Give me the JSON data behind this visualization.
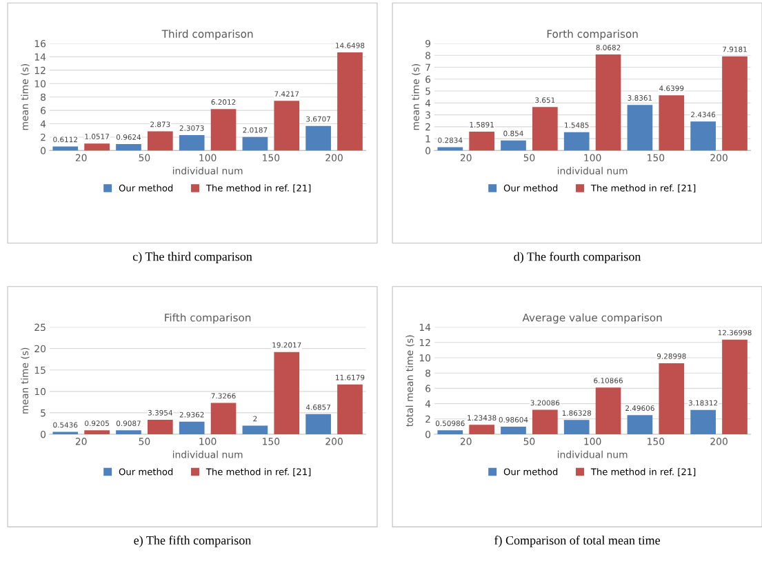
{
  "chart_data": [
    {
      "type": "bar",
      "title": "Third comparison",
      "xlabel": "individual num",
      "ylabel": "mean time (s)",
      "categories": [
        "20",
        "50",
        "100",
        "150",
        "200"
      ],
      "series": [
        {
          "name": "Our method",
          "color": "#4f81bd",
          "values": [
            0.6112,
            0.9624,
            2.3073,
            2.0187,
            3.6707
          ]
        },
        {
          "name": "The method in ref. [21]",
          "color": "#c0504d",
          "values": [
            1.0517,
            2.873,
            6.2012,
            7.4217,
            14.6498
          ]
        }
      ],
      "ylim": [
        0,
        16
      ],
      "yticks": [
        0,
        2,
        4,
        6,
        8,
        10,
        12,
        14,
        16
      ],
      "grid": "y",
      "legend": "bottom",
      "data_labels": true,
      "annotations": [
        "c) The third comparison"
      ]
    },
    {
      "type": "bar",
      "title": "Forth comparison",
      "xlabel": "individual num",
      "ylabel": "mean time (s)",
      "categories": [
        "20",
        "50",
        "100",
        "150",
        "200"
      ],
      "series": [
        {
          "name": "Our method",
          "color": "#4f81bd",
          "values": [
            0.2834,
            0.854,
            1.5485,
            3.8361,
            2.4346
          ]
        },
        {
          "name": "The method in ref. [21]",
          "color": "#c0504d",
          "values": [
            1.5891,
            3.651,
            8.0682,
            4.6399,
            7.9181
          ]
        }
      ],
      "ylim": [
        0,
        9
      ],
      "yticks": [
        0,
        1,
        2,
        3,
        4,
        5,
        6,
        7,
        8,
        9
      ],
      "grid": "y",
      "legend": "bottom",
      "data_labels": true,
      "annotations": [
        "d) The fourth comparison"
      ]
    },
    {
      "type": "bar",
      "title": "Fifth comparison",
      "xlabel": "individual num",
      "ylabel": "mean time (s)",
      "categories": [
        "20",
        "50",
        "100",
        "150",
        "200"
      ],
      "series": [
        {
          "name": "Our method",
          "color": "#4f81bd",
          "values": [
            0.5436,
            0.9087,
            2.9362,
            2,
            4.6857
          ]
        },
        {
          "name": "The method in ref. [21]",
          "color": "#c0504d",
          "values": [
            0.9205,
            3.3954,
            7.3266,
            19.2017,
            11.6179
          ]
        }
      ],
      "ylim": [
        0,
        25
      ],
      "yticks": [
        0,
        5,
        10,
        15,
        20,
        25
      ],
      "grid": "y",
      "legend": "bottom",
      "data_labels": true,
      "annotations": [
        "e) The fifth comparison"
      ]
    },
    {
      "type": "bar",
      "title": "Average value comparison",
      "xlabel": "individual num",
      "ylabel": "total mean time (s)",
      "categories": [
        "20",
        "50",
        "100",
        "150",
        "200"
      ],
      "series": [
        {
          "name": "Our method",
          "color": "#4f81bd",
          "values": [
            0.50986,
            0.98604,
            1.86328,
            2.49606,
            3.18312
          ]
        },
        {
          "name": "The method in ref. [21]",
          "color": "#c0504d",
          "values": [
            1.23438,
            3.20086,
            6.10866,
            9.28998,
            12.36998
          ]
        }
      ],
      "ylim": [
        0,
        14
      ],
      "yticks": [
        0,
        2,
        4,
        6,
        8,
        10,
        12,
        14
      ],
      "grid": "y",
      "legend": "bottom",
      "data_labels": true,
      "annotations": [
        "f) Comparison of total mean time"
      ]
    }
  ]
}
